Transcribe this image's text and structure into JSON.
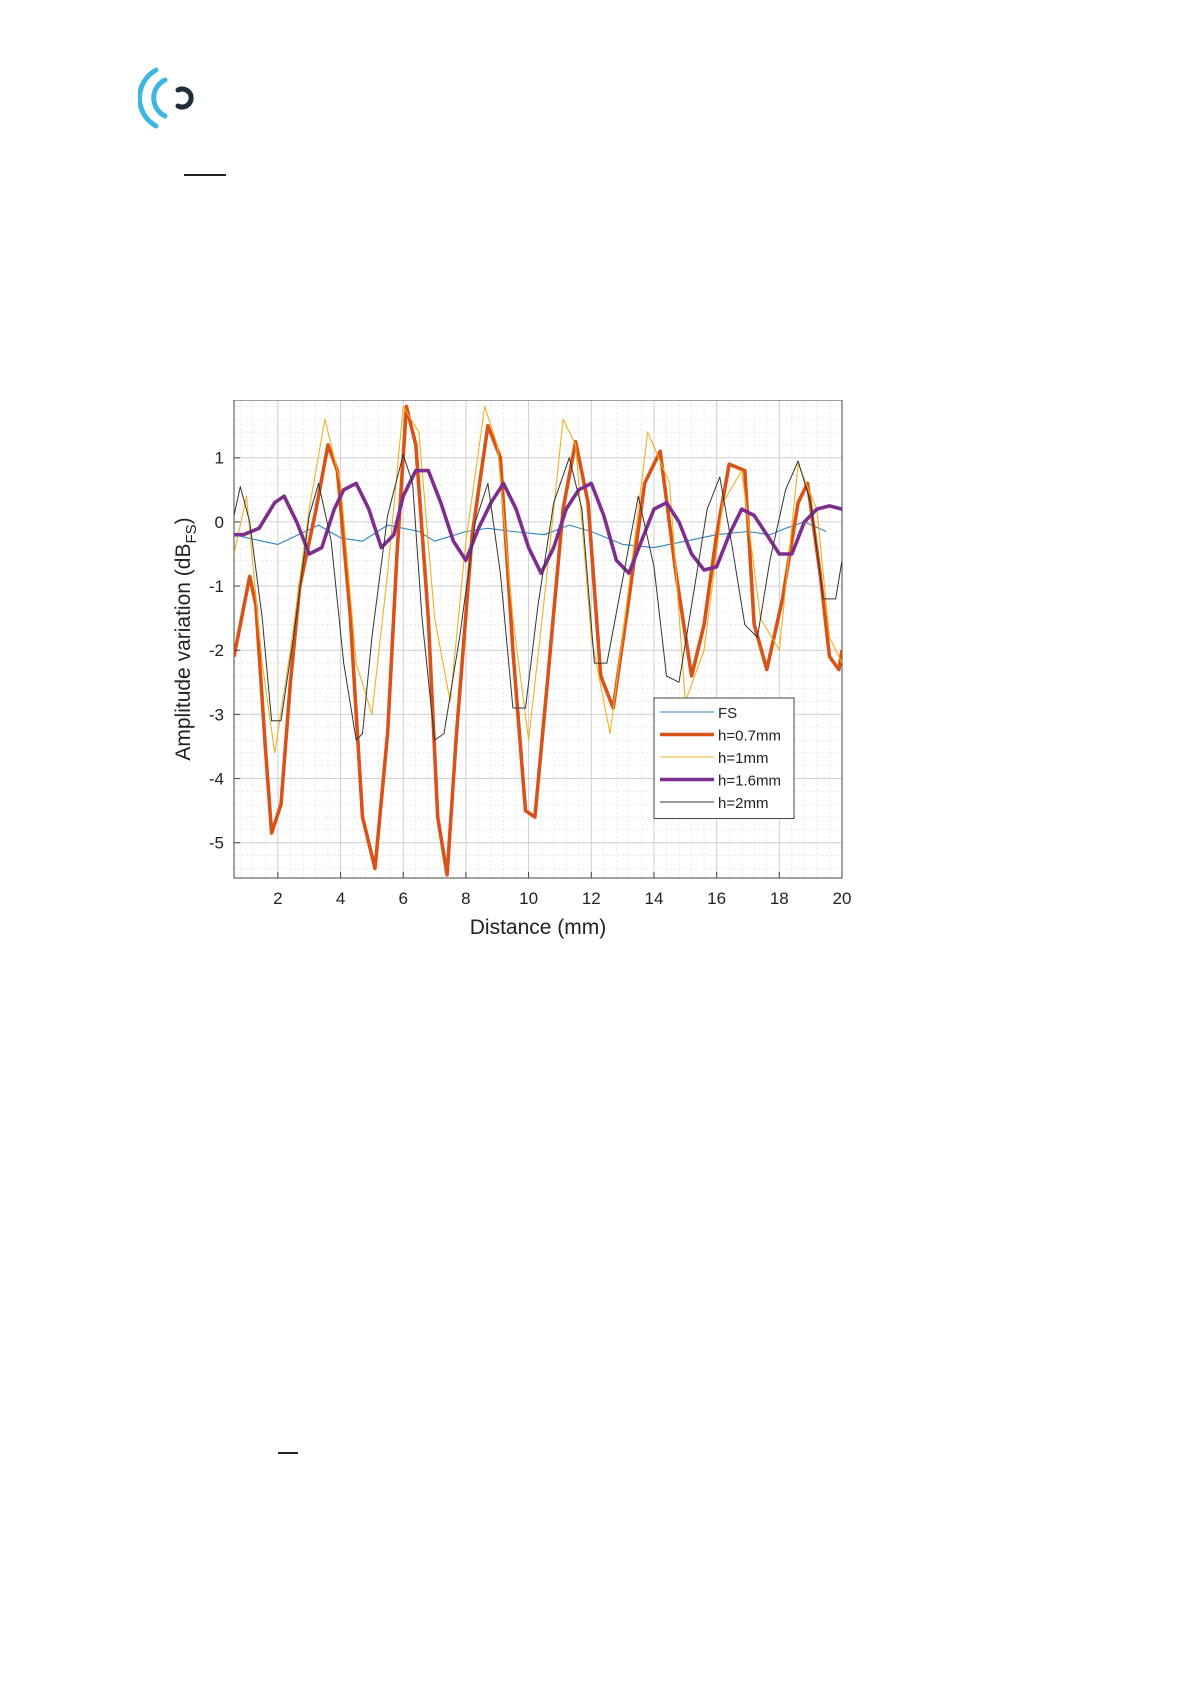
{
  "logo": {
    "icon": "signal-waves-logo-icon",
    "colors": [
      "#3fb6e2",
      "#1f2d3a"
    ]
  },
  "chart_data": {
    "type": "line",
    "title": "",
    "xlabel": "Distance (mm)",
    "ylabel": "Amplitude variation (dB",
    "ylabel_sub": "FS",
    "ylabel_end": ")",
    "xlim": [
      0.6,
      20
    ],
    "ylim": [
      -5.55,
      1.9
    ],
    "xticks": [
      2,
      4,
      6,
      8,
      10,
      12,
      14,
      16,
      18,
      20
    ],
    "yticks": [
      1,
      0,
      -1,
      -2,
      -3,
      -4,
      -5
    ],
    "grid": true,
    "minor_grid": true,
    "legend_position": "lower-right",
    "series": [
      {
        "name": "FS",
        "color": "#2e86c1",
        "width": 1.1,
        "x": [
          0.6,
          1.5,
          2,
          3.3,
          4,
          4.7,
          5.5,
          6.5,
          7,
          8,
          8.7,
          9.5,
          10.5,
          11.3,
          12,
          13,
          14,
          15,
          16,
          17,
          17.7,
          18.2,
          18.8,
          19.5
        ],
        "y": [
          -0.2,
          -0.3,
          -0.35,
          -0.05,
          -0.25,
          -0.3,
          -0.05,
          -0.15,
          -0.3,
          -0.15,
          -0.1,
          -0.15,
          -0.2,
          -0.05,
          -0.15,
          -0.35,
          -0.4,
          -0.3,
          -0.2,
          -0.15,
          -0.2,
          -0.1,
          0.0,
          -0.15
        ]
      },
      {
        "name": "h=0.7mm",
        "color": "#d95319",
        "width": 3.6,
        "x": [
          0.6,
          0.8,
          1.1,
          1.3,
          1.6,
          1.8,
          2.1,
          2.4,
          2.7,
          3.2,
          3.6,
          3.9,
          4.3,
          4.7,
          5.1,
          5.5,
          5.8,
          6.1,
          6.4,
          6.8,
          7.1,
          7.4,
          7.7,
          8.2,
          8.7,
          9.1,
          9.5,
          9.9,
          10.2,
          10.6,
          11.1,
          11.5,
          11.9,
          12.3,
          12.7,
          13.2,
          13.7,
          14.2,
          14.7,
          15.2,
          15.6,
          16.0,
          16.4,
          16.9,
          17.2,
          17.6,
          18.1,
          18.6,
          18.9,
          19.3,
          19.6,
          19.9,
          20.0
        ],
        "y": [
          -2.1,
          -1.6,
          -0.85,
          -1.3,
          -3.5,
          -4.85,
          -4.4,
          -2.5,
          -1.0,
          0.15,
          1.2,
          0.8,
          -1.4,
          -4.6,
          -5.4,
          -3.3,
          -0.5,
          1.8,
          1.2,
          -1.5,
          -4.6,
          -5.5,
          -3.3,
          -0.2,
          1.5,
          1.0,
          -2.0,
          -4.5,
          -4.6,
          -2.5,
          0.2,
          1.25,
          0.3,
          -2.4,
          -2.9,
          -1.2,
          0.6,
          1.1,
          -0.8,
          -2.4,
          -1.6,
          -0.2,
          0.9,
          0.8,
          -1.6,
          -2.3,
          -1.2,
          0.3,
          0.6,
          -0.8,
          -2.1,
          -2.3,
          -2.0
        ]
      },
      {
        "name": "h=1mm",
        "color": "#edb120",
        "width": 1.1,
        "x": [
          0.6,
          1.0,
          1.5,
          1.9,
          2.4,
          3.0,
          3.5,
          4.0,
          4.5,
          5.0,
          5.5,
          6.0,
          6.5,
          7.0,
          7.5,
          8.0,
          8.6,
          9.0,
          9.5,
          10.0,
          10.5,
          11.1,
          11.5,
          12.0,
          12.6,
          13.2,
          13.8,
          14.5,
          15.0,
          15.6,
          16.2,
          16.8,
          17.4,
          18.0,
          18.6,
          19.2,
          19.6,
          20.0
        ],
        "y": [
          -0.5,
          0.4,
          -2.2,
          -3.6,
          -2.0,
          0.2,
          1.6,
          0.6,
          -2.2,
          -3.0,
          -0.8,
          1.8,
          1.4,
          -1.5,
          -2.8,
          -0.3,
          1.8,
          1.2,
          -1.5,
          -3.4,
          -1.2,
          1.6,
          1.2,
          -1.8,
          -3.3,
          -1.0,
          1.4,
          0.6,
          -2.8,
          -2.0,
          0.3,
          0.8,
          -1.5,
          -2.0,
          0.9,
          0.2,
          -1.8,
          -2.2
        ]
      },
      {
        "name": "h=1.6mm",
        "color": "#7e2f8e",
        "width": 3.6,
        "x": [
          0.6,
          0.9,
          1.4,
          1.9,
          2.2,
          2.6,
          3.0,
          3.4,
          3.8,
          4.1,
          4.5,
          4.9,
          5.3,
          5.7,
          6.0,
          6.4,
          6.8,
          7.2,
          7.6,
          8.0,
          8.4,
          8.8,
          9.2,
          9.6,
          10.0,
          10.4,
          10.8,
          11.2,
          11.6,
          12.0,
          12.4,
          12.8,
          13.2,
          13.6,
          14.0,
          14.4,
          14.8,
          15.2,
          15.6,
          16.0,
          16.4,
          16.8,
          17.2,
          17.6,
          18.0,
          18.4,
          18.8,
          19.2,
          19.6,
          20.0
        ],
        "y": [
          -0.2,
          -0.2,
          -0.1,
          0.3,
          0.4,
          0.0,
          -0.5,
          -0.4,
          0.2,
          0.5,
          0.6,
          0.2,
          -0.4,
          -0.2,
          0.4,
          0.8,
          0.8,
          0.3,
          -0.3,
          -0.6,
          -0.1,
          0.3,
          0.6,
          0.2,
          -0.4,
          -0.8,
          -0.4,
          0.2,
          0.5,
          0.6,
          0.1,
          -0.6,
          -0.8,
          -0.3,
          0.2,
          0.3,
          0.0,
          -0.5,
          -0.75,
          -0.7,
          -0.2,
          0.2,
          0.1,
          -0.2,
          -0.5,
          -0.5,
          0.0,
          0.2,
          0.25,
          0.2
        ]
      },
      {
        "name": "h=2mm",
        "color": "#333333",
        "width": 1.0,
        "x": [
          0.6,
          0.8,
          1.1,
          1.5,
          1.8,
          2.1,
          2.5,
          3.0,
          3.3,
          3.7,
          4.1,
          4.5,
          4.7,
          5.0,
          5.5,
          6.0,
          6.3,
          6.6,
          7.0,
          7.3,
          7.8,
          8.3,
          8.7,
          9.1,
          9.5,
          9.9,
          10.3,
          10.8,
          11.3,
          11.7,
          12.1,
          12.5,
          13.0,
          13.5,
          14.0,
          14.4,
          14.8,
          15.2,
          15.7,
          16.1,
          16.5,
          16.9,
          17.3,
          17.7,
          18.2,
          18.6,
          19.0,
          19.4,
          19.8,
          20.0
        ],
        "y": [
          0.1,
          0.55,
          0.0,
          -1.5,
          -3.1,
          -3.1,
          -1.8,
          0.1,
          0.6,
          -0.3,
          -2.2,
          -3.4,
          -3.3,
          -1.8,
          0.1,
          1.05,
          0.6,
          -1.5,
          -3.4,
          -3.3,
          -1.8,
          0.0,
          0.6,
          -0.8,
          -2.9,
          -2.9,
          -1.3,
          0.3,
          1.0,
          0.2,
          -2.2,
          -2.2,
          -0.9,
          0.4,
          -0.7,
          -2.4,
          -2.5,
          -1.3,
          0.2,
          0.7,
          -0.4,
          -1.6,
          -1.8,
          -0.6,
          0.5,
          0.95,
          0.3,
          -1.2,
          -1.2,
          -0.6
        ]
      }
    ]
  }
}
